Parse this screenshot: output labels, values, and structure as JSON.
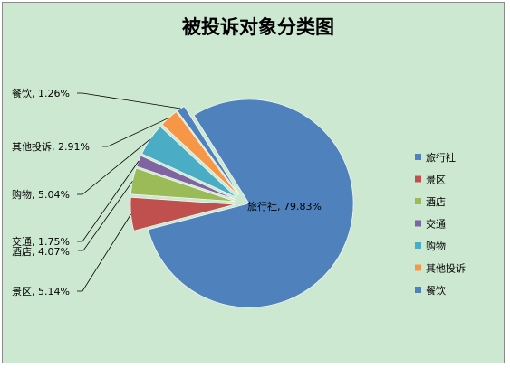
{
  "chart_data": {
    "type": "pie",
    "title": "被投诉对象分类图",
    "categories": [
      "旅行社",
      "景区",
      "酒店",
      "交通",
      "购物",
      "其他投诉",
      "餐饮"
    ],
    "values": [
      79.83,
      5.14,
      4.07,
      1.75,
      5.04,
      2.91,
      1.26
    ],
    "data_labels": [
      "旅行社, 79.83%",
      "景区, 5.14%",
      "酒店, 4.07%",
      "交通, 1.75%",
      "购物, 5.04%",
      "其他投诉, 2.91%",
      "餐饮, 1.26%"
    ],
    "colors": [
      "#4f81bd",
      "#c0504d",
      "#9bbb59",
      "#8064a2",
      "#4bacc6",
      "#f79646",
      "#4f81bd"
    ],
    "legend_position": "right",
    "exploded": true
  }
}
